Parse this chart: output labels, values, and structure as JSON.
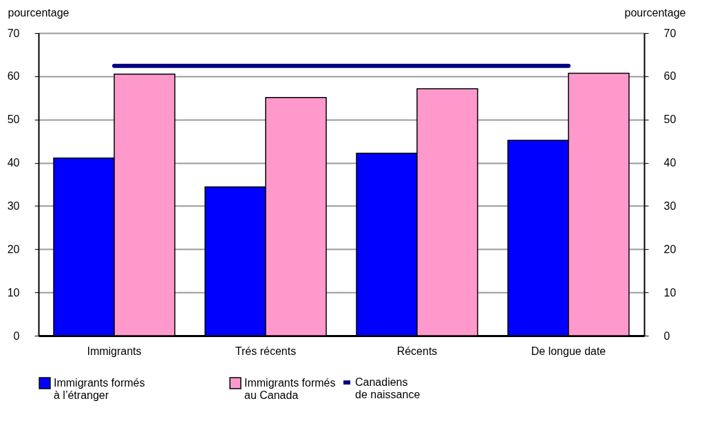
{
  "chart_data": {
    "type": "bar",
    "ylabel": "pourcentage",
    "y2label": "pourcentage",
    "categories": [
      "Immigrants",
      "Trés récents",
      "Récents",
      "De longue date"
    ],
    "series": [
      {
        "name": "Immigrants formés\nà l’étranger",
        "color": "#0000ff",
        "values": [
          41.1,
          34.4,
          42.2,
          45.2
        ]
      },
      {
        "name": "Immigrants formés\nau Canada",
        "color": "#ff99cc",
        "values": [
          60.5,
          55.1,
          57.1,
          60.7
        ]
      },
      {
        "name": "Canadiens\nde naissance",
        "color": "#000080",
        "type": "line",
        "values": [
          62.4,
          62.4,
          62.4,
          62.4
        ]
      }
    ],
    "ylim": [
      0,
      70
    ],
    "yticks": [
      0,
      10,
      20,
      30,
      40,
      50,
      60,
      70
    ],
    "y2lim": [
      0,
      70
    ],
    "y2ticks": [
      0,
      10,
      20,
      30,
      40,
      50,
      60,
      70
    ],
    "grid": "y",
    "legend": "bottom"
  }
}
